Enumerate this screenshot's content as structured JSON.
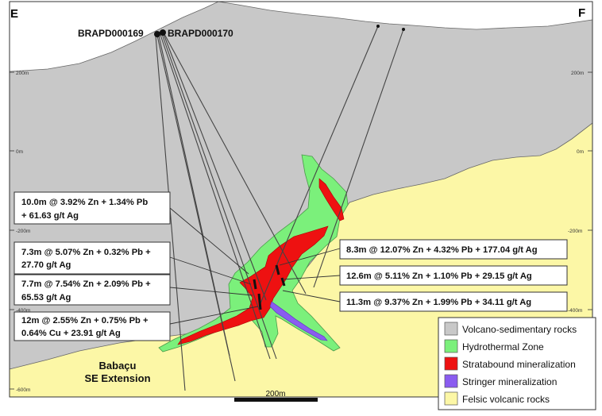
{
  "section": {
    "left_end": "E",
    "right_end": "F"
  },
  "colors": {
    "volcano_sedimentary": "#c8c8c8",
    "hydrothermal": "#7bf07b",
    "stratabound": "#ee1111",
    "stringer": "#8a5cf0",
    "felsic": "#fcf7a6"
  },
  "elevation_ticks": [
    "200m",
    "0m",
    "-200m",
    "-400m",
    "-600m"
  ],
  "drillholes": [
    "BRAPD000169",
    "BRAPD000170"
  ],
  "intercepts_left": [
    {
      "line1": "10.0m @ 3.92% Zn + 1.34% Pb",
      "line2": "+ 61.63 g/t Ag"
    },
    {
      "line1": "7.3m @ 5.07% Zn + 0.32% Pb +",
      "line2": "27.70 g/t Ag"
    },
    {
      "line1": "7.7m @ 7.54% Zn + 2.09% Pb +",
      "line2": "65.53 g/t Ag"
    },
    {
      "line1": "12m @ 2.55% Zn + 0.75% Pb +",
      "line2": "0.64% Cu + 23.91 g/t Ag"
    }
  ],
  "intercepts_right": [
    "8.3m @ 12.07% Zn + 4.32% Pb + 177.04 g/t Ag",
    "12.6m @ 5.11% Zn + 1.10% Pb + 29.15 g/t Ag",
    "11.3m @ 9.37% Zn + 1.99% Pb + 34.11 g/t Ag"
  ],
  "area_label": {
    "line1": "Babaçu",
    "line2": "SE Extension"
  },
  "scale_bar": "200m",
  "legend": [
    {
      "label": "Volcano-sedimentary rocks",
      "color": "#c8c8c8"
    },
    {
      "label": "Hydrothermal Zone",
      "color": "#7bf07b"
    },
    {
      "label": "Stratabound mineralization",
      "color": "#ee1111"
    },
    {
      "label": "Stringer mineralization",
      "color": "#8a5cf0"
    },
    {
      "label": "Felsic volcanic rocks",
      "color": "#fcf7a6"
    }
  ]
}
